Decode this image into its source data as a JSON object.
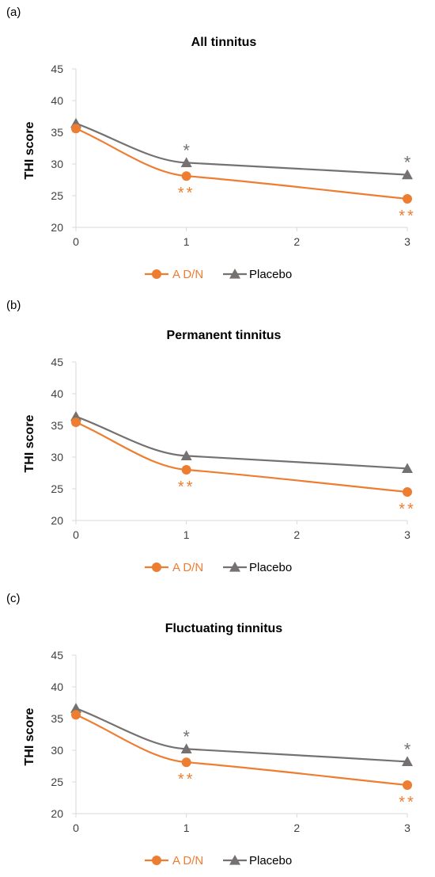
{
  "figure": {
    "panel_letters": [
      "(a)",
      "(b)",
      "(c)"
    ]
  },
  "colors": {
    "adn": "#ED7D31",
    "placebo": "#767171",
    "axis": "#D9D9D9",
    "tick_text": "#404040"
  },
  "chart_data": [
    {
      "type": "line",
      "title": "All tinnitus",
      "ylabel": "THI score",
      "xlabel": "",
      "x": [
        0,
        1,
        3
      ],
      "xlim": [
        0,
        3
      ],
      "xticks": [
        0,
        1,
        2,
        3
      ],
      "ylim": [
        20,
        45
      ],
      "yticks": [
        20,
        25,
        30,
        35,
        40,
        45
      ],
      "grid": false,
      "legend": "bottom",
      "smooth": true,
      "series": [
        {
          "name": "A D/N",
          "color": "#ED7D31",
          "marker": "circle",
          "values": [
            35.6,
            28.1,
            24.5
          ],
          "annotations": [
            "",
            "**",
            "**"
          ]
        },
        {
          "name": "Placebo",
          "color": "#767171",
          "marker": "triangle",
          "values": [
            36.4,
            30.2,
            28.3
          ],
          "annotations": [
            "",
            "*",
            "*"
          ]
        }
      ]
    },
    {
      "type": "line",
      "title": "Permanent tinnitus",
      "ylabel": "THI score",
      "xlabel": "",
      "x": [
        0,
        1,
        3
      ],
      "xlim": [
        0,
        3
      ],
      "xticks": [
        0,
        1,
        2,
        3
      ],
      "ylim": [
        20,
        45
      ],
      "yticks": [
        20,
        25,
        30,
        35,
        40,
        45
      ],
      "grid": false,
      "legend": "bottom",
      "smooth": true,
      "series": [
        {
          "name": "A D/N",
          "color": "#ED7D31",
          "marker": "circle",
          "values": [
            35.5,
            28.0,
            24.5
          ],
          "annotations": [
            "",
            "**",
            "**"
          ]
        },
        {
          "name": "Placebo",
          "color": "#767171",
          "marker": "triangle",
          "values": [
            36.4,
            30.2,
            28.2
          ],
          "annotations": [
            "",
            "",
            ""
          ]
        }
      ]
    },
    {
      "type": "line",
      "title": "Fluctuating tinnitus",
      "ylabel": "THI score",
      "xlabel": "",
      "x": [
        0,
        1,
        3
      ],
      "xlim": [
        0,
        3
      ],
      "xticks": [
        0,
        1,
        2,
        3
      ],
      "ylim": [
        20,
        45
      ],
      "yticks": [
        20,
        25,
        30,
        35,
        40,
        45
      ],
      "grid": false,
      "legend": "bottom",
      "smooth": true,
      "series": [
        {
          "name": "A D/N",
          "color": "#ED7D31",
          "marker": "circle",
          "values": [
            35.6,
            28.1,
            24.5
          ],
          "annotations": [
            "",
            "**",
            "**"
          ]
        },
        {
          "name": "Placebo",
          "color": "#767171",
          "marker": "triangle",
          "values": [
            36.6,
            30.2,
            28.2
          ],
          "annotations": [
            "",
            "*",
            "*"
          ]
        }
      ]
    }
  ]
}
